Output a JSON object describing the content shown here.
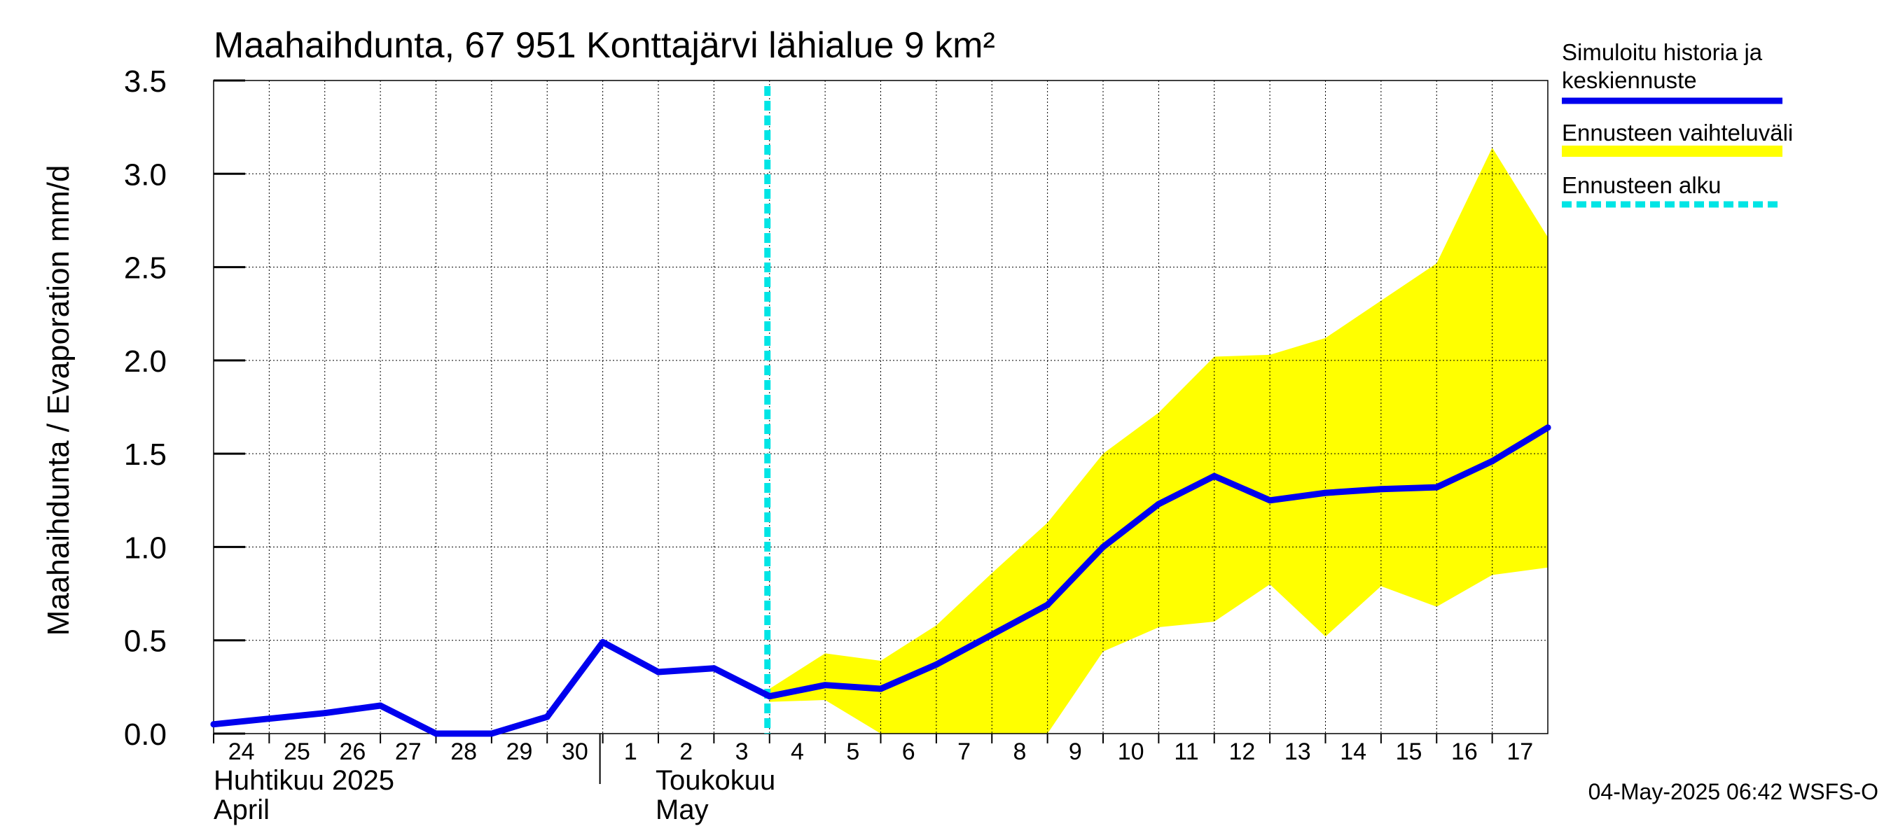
{
  "chart_data": {
    "type": "line",
    "title": "Maahaihdunta, 67 951 Konttajärvi lähialue 9 km²",
    "ylabel": "Maahaihdunta / Evaporation   mm/d",
    "ylim": [
      0,
      3.5
    ],
    "yticks": [
      "0.0",
      "0.5",
      "1.0",
      "1.5",
      "2.0",
      "2.5",
      "3.0",
      "3.5"
    ],
    "x_dates": [
      "2025-04-24",
      "2025-04-25",
      "2025-04-26",
      "2025-04-27",
      "2025-04-28",
      "2025-04-29",
      "2025-04-30",
      "2025-05-01",
      "2025-05-02",
      "2025-05-03",
      "2025-05-04",
      "2025-05-05",
      "2025-05-06",
      "2025-05-07",
      "2025-05-08",
      "2025-05-09",
      "2025-05-10",
      "2025-05-11",
      "2025-05-12",
      "2025-05-13",
      "2025-05-14",
      "2025-05-15",
      "2025-05-16",
      "2025-05-17",
      "2025-05-18"
    ],
    "xticks": [
      "24",
      "25",
      "26",
      "27",
      "28",
      "29",
      "30",
      "1",
      "2",
      "3",
      "4",
      "5",
      "6",
      "7",
      "8",
      "9",
      "10",
      "11",
      "12",
      "13",
      "14",
      "15",
      "16",
      "17"
    ],
    "month_labels": [
      {
        "line1": "Huhtikuu  2025",
        "line2": "April"
      },
      {
        "line1": "Toukokuu",
        "line2": "May"
      }
    ],
    "forecast_start": "2025-05-04",
    "series": [
      {
        "name": "Simuloitu historia ja keskiennuste",
        "color": "#0000ee",
        "values": [
          0.05,
          0.08,
          0.11,
          0.15,
          0.0,
          0.0,
          0.09,
          0.49,
          0.33,
          0.35,
          0.2,
          0.26,
          0.24,
          0.37,
          0.53,
          0.69,
          1.0,
          1.23,
          1.38,
          1.25,
          1.29,
          1.31,
          1.32,
          1.46,
          1.64
        ]
      }
    ],
    "band": {
      "name": "Ennusteen vaihteluväli",
      "color": "#ffff00",
      "start_index": 10,
      "upper": [
        0.24,
        0.43,
        0.39,
        0.58,
        0.86,
        1.13,
        1.5,
        1.72,
        2.02,
        2.03,
        2.12,
        2.32,
        2.52,
        3.14,
        2.66
      ],
      "lower": [
        0.17,
        0.18,
        0.0,
        0.0,
        0.0,
        0.0,
        0.44,
        0.57,
        0.6,
        0.8,
        0.52,
        0.79,
        0.68,
        0.85,
        0.89
      ]
    },
    "legend": [
      {
        "label_lines": [
          "Simuloitu historia ja",
          "keskiennuste"
        ],
        "color": "#0000ee",
        "style": "solid"
      },
      {
        "label_lines": [
          "Ennusteen vaihteluväli"
        ],
        "color": "#ffff00",
        "style": "band"
      },
      {
        "label_lines": [
          "Ennusteen alku"
        ],
        "color": "#00e5e5",
        "style": "dashed"
      }
    ],
    "legend_position": "right",
    "grid": true,
    "footer": "04-May-2025 06:42 WSFS-O"
  }
}
